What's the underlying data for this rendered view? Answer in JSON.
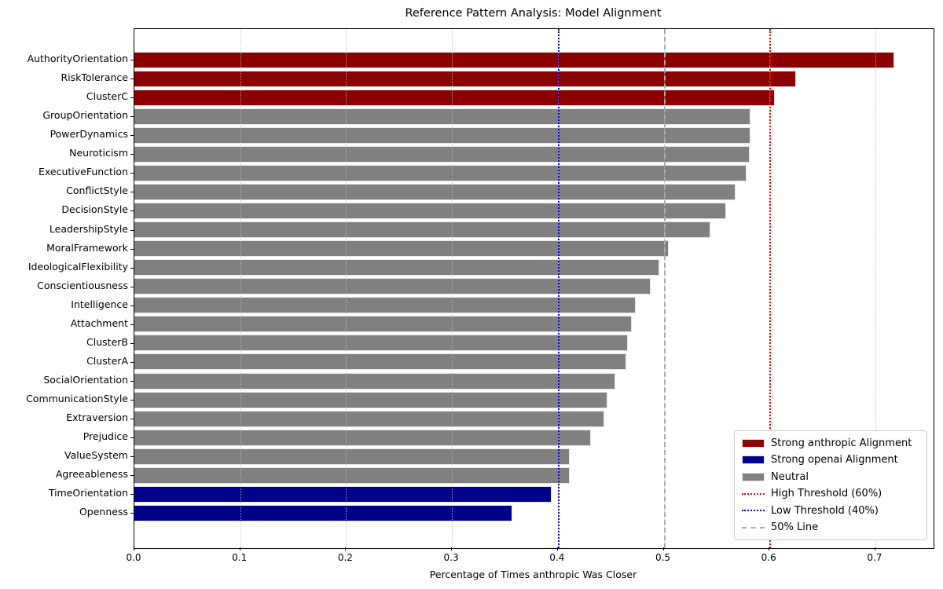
{
  "chart_data": {
    "type": "bar",
    "orientation": "horizontal",
    "title": "Reference Pattern Analysis: Model Alignment",
    "xlabel": "Percentage of Times anthropic Was Closer",
    "xlim": [
      0,
      0.755
    ],
    "x_tick_labels": [
      "0.0",
      "0.1",
      "0.2",
      "0.3",
      "0.4",
      "0.5",
      "0.6",
      "0.7"
    ],
    "x_tick_values": [
      0.0,
      0.1,
      0.2,
      0.3,
      0.4,
      0.5,
      0.6,
      0.7
    ],
    "grid": "vertical dotted gridlines at each x tick",
    "legend_position": "lower right",
    "categories": [
      "AuthorityOrientation",
      "RiskTolerance",
      "ClusterC",
      "GroupOrientation",
      "PowerDynamics",
      "Neuroticism",
      "ExecutiveFunction",
      "ConflictStyle",
      "DecisionStyle",
      "LeadershipStyle",
      "MoralFramework",
      "IdeologicalFlexibility",
      "Conscientiousness",
      "Intelligence",
      "Attachment",
      "ClusterB",
      "ClusterA",
      "SocialOrientation",
      "CommunicationStyle",
      "Extraversion",
      "Prejudice",
      "ValueSystem",
      "Agreeableness",
      "TimeOrientation",
      "Openness"
    ],
    "values": [
      0.718,
      0.625,
      0.605,
      0.582,
      0.582,
      0.581,
      0.578,
      0.568,
      0.559,
      0.544,
      0.505,
      0.496,
      0.488,
      0.474,
      0.47,
      0.466,
      0.465,
      0.454,
      0.447,
      0.444,
      0.431,
      0.411,
      0.411,
      0.394,
      0.357
    ],
    "groups": [
      "anthropic",
      "anthropic",
      "anthropic",
      "neutral",
      "neutral",
      "neutral",
      "neutral",
      "neutral",
      "neutral",
      "neutral",
      "neutral",
      "neutral",
      "neutral",
      "neutral",
      "neutral",
      "neutral",
      "neutral",
      "neutral",
      "neutral",
      "neutral",
      "neutral",
      "neutral",
      "neutral",
      "openai",
      "openai"
    ],
    "thresholds": [
      {
        "value": 0.6,
        "style": "dotted",
        "color": "#ff0000",
        "label": "High Threshold (60%)"
      },
      {
        "value": 0.4,
        "style": "dotted",
        "color": "#0000ee",
        "label": "Low Threshold (40%)"
      },
      {
        "value": 0.5,
        "style": "dashed",
        "color": "#aaaaaa",
        "label": "50% Line"
      }
    ],
    "colors": {
      "anthropic": "#8B0000",
      "openai": "#00008B",
      "neutral": "#808080"
    },
    "legend": [
      {
        "label": "Strong anthropic Alignment",
        "swatch": "patch",
        "color": "#8B0000"
      },
      {
        "label": "Strong openai Alignment",
        "swatch": "patch",
        "color": "#00008B"
      },
      {
        "label": "Neutral",
        "swatch": "patch",
        "color": "#808080"
      },
      {
        "label": "High Threshold (60%)",
        "swatch": "dotted",
        "color": "#ff0000"
      },
      {
        "label": "Low Threshold (40%)",
        "swatch": "dotted",
        "color": "#0000ee"
      },
      {
        "label": "50% Line",
        "swatch": "dashed",
        "color": "#aaaaaa"
      }
    ]
  }
}
